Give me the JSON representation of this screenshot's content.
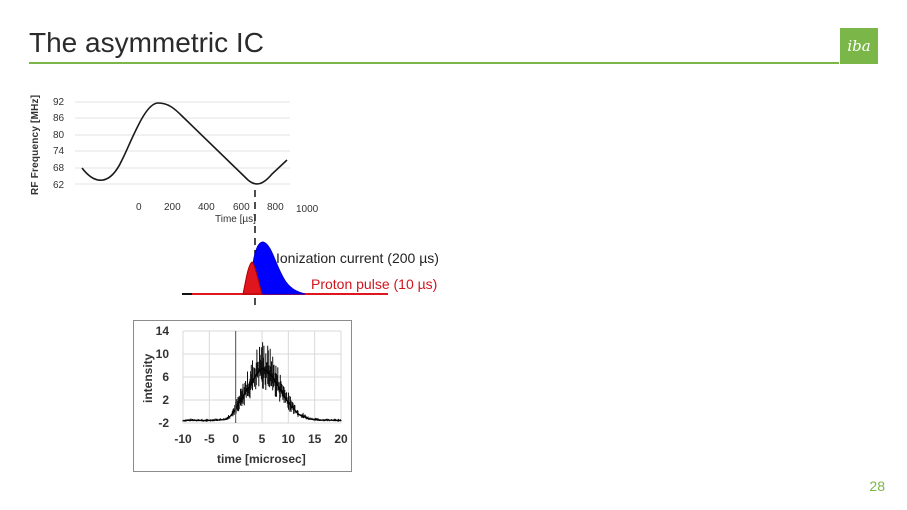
{
  "slide": {
    "title": "The asymmetric IC",
    "logo_text": "iba",
    "page_number": "28",
    "accent_color": "#7ab648"
  },
  "rf_chart": {
    "ylabel": "RF Frequency [MHz]",
    "xlabel": "Time [µs]",
    "y_ticks": [
      "92",
      "86",
      "80",
      "74",
      "68",
      "62"
    ],
    "x_ticks": [
      "0",
      "200",
      "400",
      "600",
      "800",
      "1000"
    ]
  },
  "pulses": {
    "ionization_label": "Ionization current (200 µs)",
    "proton_label": "Proton pulse (10 µs)",
    "ionization_color": "#0000ff",
    "proton_color": "#e0161f"
  },
  "chart_data": {
    "type": "line",
    "title": "",
    "xlabel": "time [microsec]",
    "ylabel": "intensity",
    "xlim": [
      -10,
      20
    ],
    "ylim": [
      -2,
      14
    ],
    "x_ticks": [
      "-10",
      "-5",
      "0",
      "5",
      "10",
      "15",
      "20"
    ],
    "y_ticks": [
      "14",
      "10",
      "6",
      "2",
      "-2"
    ],
    "grid": true,
    "series": [
      {
        "x": [
          -10,
          -8,
          -6,
          -4,
          -2,
          -1,
          0,
          1,
          2,
          3,
          4,
          5,
          6,
          7,
          8,
          9,
          10,
          11,
          12,
          14,
          16,
          18,
          20
        ],
        "values": [
          -1.6,
          -1.5,
          -1.6,
          -1.5,
          -1.4,
          -0.8,
          0.5,
          2.0,
          3.5,
          5.0,
          6.5,
          7.5,
          7.0,
          6.0,
          4.5,
          3.0,
          1.5,
          0.5,
          -0.5,
          -1.3,
          -1.5,
          -1.5,
          -1.6
        ]
      }
    ]
  }
}
